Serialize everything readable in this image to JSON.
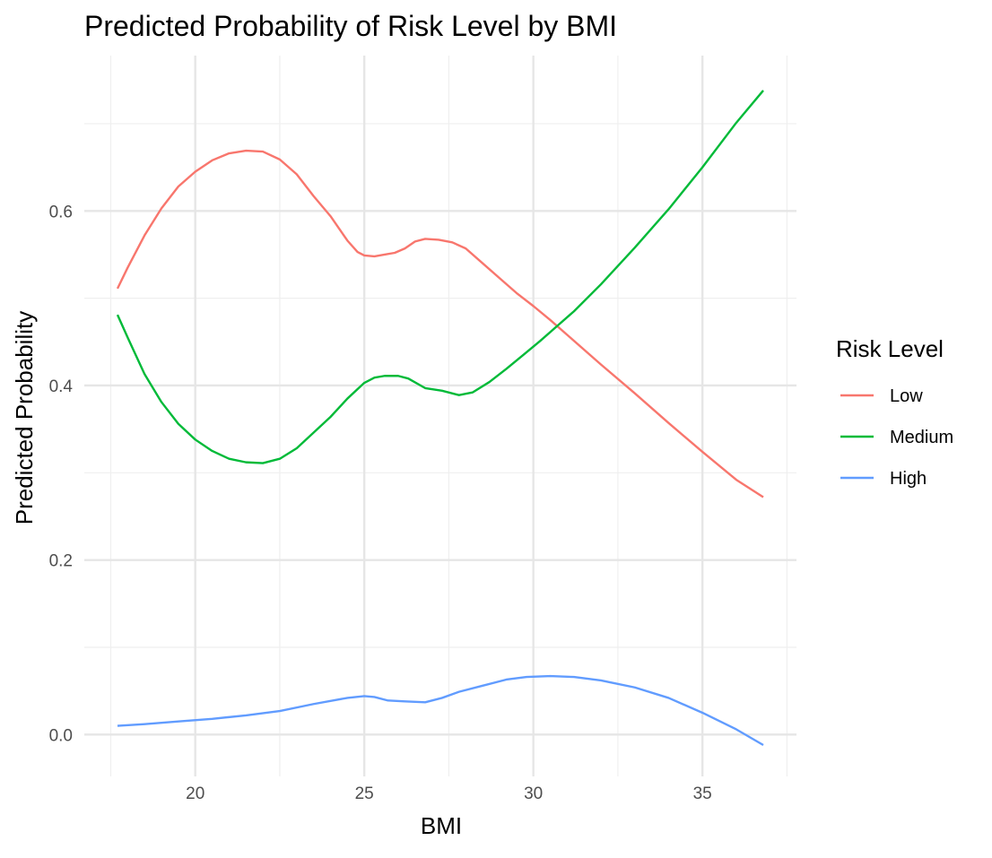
{
  "chart_data": {
    "type": "line",
    "title": "Predicted Probability of Risk Level by BMI",
    "xlabel": "BMI",
    "ylabel": "Predicted Probability",
    "xlim": [
      17.7,
      36.8
    ],
    "ylim": [
      -0.012,
      0.74
    ],
    "x_ticks": [
      20,
      25,
      30,
      35
    ],
    "x_tick_labels": [
      "20",
      "25",
      "30",
      "35"
    ],
    "y_ticks": [
      0.0,
      0.2,
      0.4,
      0.6
    ],
    "y_tick_labels": [
      "0.0",
      "0.2",
      "0.4",
      "0.6"
    ],
    "grid": true,
    "legend": {
      "title": "Risk Level",
      "position": "right"
    },
    "series": [
      {
        "name": "Low",
        "color": "#F8766D",
        "points": [
          [
            17.7,
            0.511
          ],
          [
            18.0,
            0.535
          ],
          [
            18.5,
            0.572
          ],
          [
            19.0,
            0.603
          ],
          [
            19.5,
            0.628
          ],
          [
            20.0,
            0.645
          ],
          [
            20.5,
            0.658
          ],
          [
            21.0,
            0.666
          ],
          [
            21.5,
            0.669
          ],
          [
            22.0,
            0.668
          ],
          [
            22.5,
            0.659
          ],
          [
            23.0,
            0.642
          ],
          [
            23.5,
            0.617
          ],
          [
            24.0,
            0.594
          ],
          [
            24.5,
            0.566
          ],
          [
            24.8,
            0.553
          ],
          [
            25.0,
            0.549
          ],
          [
            25.3,
            0.548
          ],
          [
            25.6,
            0.55
          ],
          [
            25.9,
            0.552
          ],
          [
            26.2,
            0.557
          ],
          [
            26.5,
            0.565
          ],
          [
            26.8,
            0.568
          ],
          [
            27.2,
            0.567
          ],
          [
            27.6,
            0.564
          ],
          [
            28.0,
            0.557
          ],
          [
            28.5,
            0.54
          ],
          [
            29.0,
            0.523
          ],
          [
            29.5,
            0.506
          ],
          [
            30.0,
            0.491
          ],
          [
            30.5,
            0.475
          ],
          [
            31.0,
            0.458
          ],
          [
            32.0,
            0.424
          ],
          [
            33.0,
            0.391
          ],
          [
            34.0,
            0.357
          ],
          [
            35.0,
            0.324
          ],
          [
            36.0,
            0.292
          ],
          [
            36.8,
            0.272
          ]
        ]
      },
      {
        "name": "Medium",
        "color": "#00BA38",
        "points": [
          [
            17.7,
            0.481
          ],
          [
            18.0,
            0.455
          ],
          [
            18.5,
            0.413
          ],
          [
            19.0,
            0.381
          ],
          [
            19.5,
            0.356
          ],
          [
            20.0,
            0.338
          ],
          [
            20.5,
            0.325
          ],
          [
            21.0,
            0.316
          ],
          [
            21.5,
            0.312
          ],
          [
            22.0,
            0.311
          ],
          [
            22.5,
            0.316
          ],
          [
            23.0,
            0.328
          ],
          [
            23.5,
            0.346
          ],
          [
            24.0,
            0.364
          ],
          [
            24.5,
            0.385
          ],
          [
            25.0,
            0.403
          ],
          [
            25.3,
            0.409
          ],
          [
            25.6,
            0.411
          ],
          [
            26.0,
            0.411
          ],
          [
            26.3,
            0.408
          ],
          [
            26.8,
            0.397
          ],
          [
            27.3,
            0.394
          ],
          [
            27.8,
            0.389
          ],
          [
            28.2,
            0.392
          ],
          [
            28.7,
            0.404
          ],
          [
            29.2,
            0.419
          ],
          [
            29.7,
            0.435
          ],
          [
            30.2,
            0.451
          ],
          [
            30.7,
            0.468
          ],
          [
            31.2,
            0.485
          ],
          [
            32.0,
            0.516
          ],
          [
            33.0,
            0.558
          ],
          [
            34.0,
            0.602
          ],
          [
            35.0,
            0.65
          ],
          [
            36.0,
            0.701
          ],
          [
            36.8,
            0.738
          ]
        ]
      },
      {
        "name": "High",
        "color": "#619CFF",
        "points": [
          [
            17.7,
            0.01
          ],
          [
            18.5,
            0.012
          ],
          [
            19.5,
            0.015
          ],
          [
            20.5,
            0.018
          ],
          [
            21.5,
            0.022
          ],
          [
            22.5,
            0.027
          ],
          [
            23.5,
            0.035
          ],
          [
            24.5,
            0.042
          ],
          [
            25.0,
            0.044
          ],
          [
            25.3,
            0.043
          ],
          [
            25.7,
            0.039
          ],
          [
            26.2,
            0.038
          ],
          [
            26.8,
            0.037
          ],
          [
            27.3,
            0.042
          ],
          [
            27.8,
            0.049
          ],
          [
            28.5,
            0.056
          ],
          [
            29.2,
            0.063
          ],
          [
            29.8,
            0.066
          ],
          [
            30.5,
            0.067
          ],
          [
            31.2,
            0.066
          ],
          [
            32.0,
            0.062
          ],
          [
            33.0,
            0.054
          ],
          [
            34.0,
            0.042
          ],
          [
            35.0,
            0.025
          ],
          [
            36.0,
            0.006
          ],
          [
            36.8,
            -0.012
          ]
        ]
      }
    ]
  }
}
